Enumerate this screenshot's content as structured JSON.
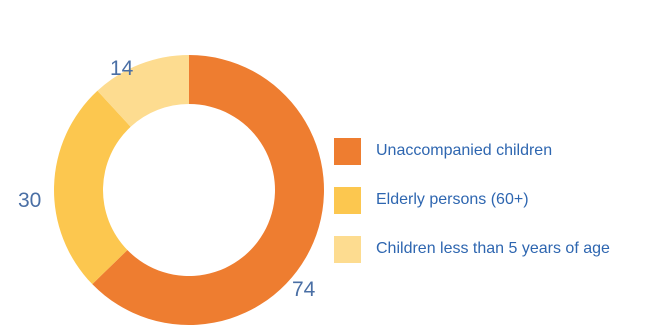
{
  "chart_data": {
    "type": "pie",
    "categories": [
      "Unaccompanied children",
      "Elderly persons (60+)",
      "Children less than 5 years of age"
    ],
    "values": [
      74,
      30,
      14
    ],
    "colors": [
      "#ee7d30",
      "#fcc74f",
      "#fddc90"
    ],
    "data_labels": [
      "74",
      "30",
      "14"
    ],
    "legend": "right",
    "donut": true
  }
}
